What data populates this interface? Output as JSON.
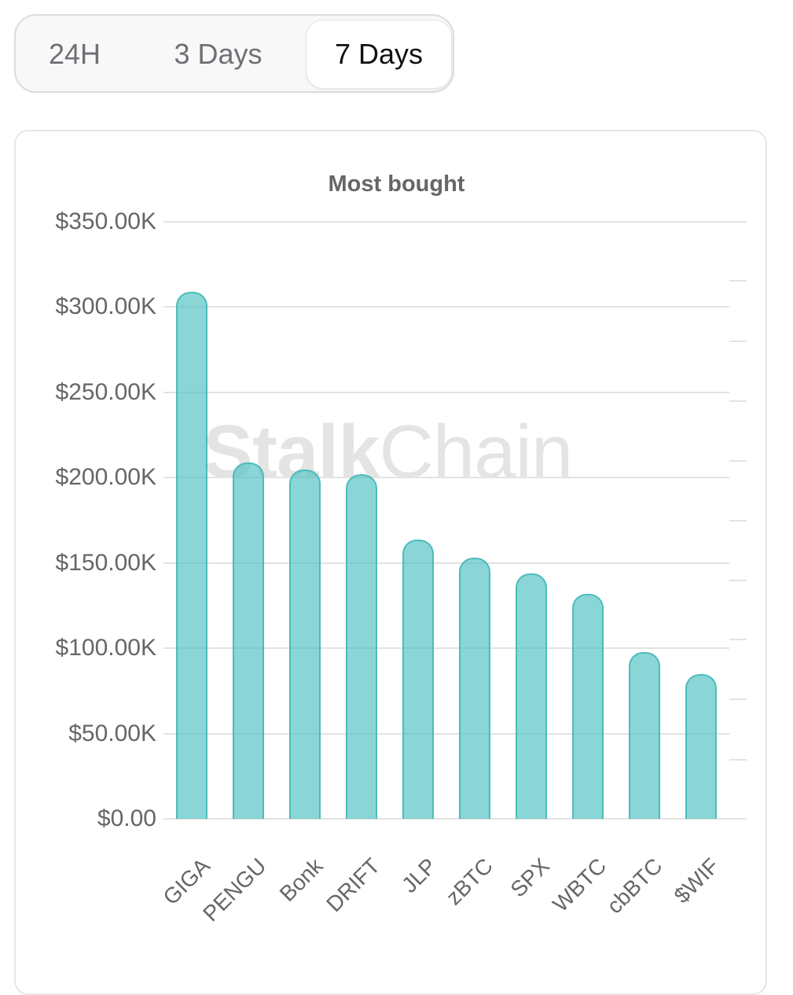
{
  "tabs": [
    {
      "label": "24H",
      "active": false
    },
    {
      "label": "3 Days",
      "active": false
    },
    {
      "label": "7 Days",
      "active": true
    }
  ],
  "watermark": {
    "bold": "Stalk",
    "regular": "Chain"
  },
  "colors": {
    "bar_fill": "#86d4d4",
    "bar_border": "#4bbcbc",
    "grid": "#e3e3e3",
    "text": "#666666",
    "active_tab_text": "#111111",
    "inactive_tab_text": "#6f6f75"
  },
  "chart_data": {
    "type": "bar",
    "title": "Most bought",
    "xlabel": "",
    "ylabel": "",
    "categories": [
      "GIGA",
      "PENGU",
      "Bonk",
      "DRIFT",
      "JLP",
      "zBTC",
      "SPX",
      "WBTC",
      "cbBTC",
      "$WIF"
    ],
    "values": [
      308000,
      208000,
      204000,
      201000,
      163000,
      152000,
      143000,
      131000,
      97000,
      84000
    ],
    "ylim": [
      0,
      350000
    ],
    "yticks": [
      "$0.00",
      "$50.00K",
      "$100.00K",
      "$150.00K",
      "$200.00K",
      "$250.00K",
      "$300.00K",
      "$350.00K"
    ],
    "grid": true,
    "legend": "none",
    "x_label_rotation": -45
  }
}
